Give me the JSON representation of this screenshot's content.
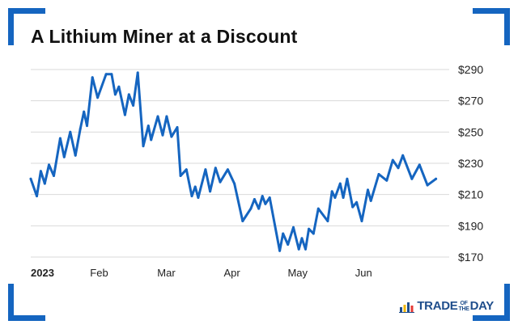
{
  "header": {
    "title": "A Lithium Miner at a Discount"
  },
  "brand": {
    "logo_part1": "TRADE",
    "logo_small1": "OF",
    "logo_small2": "THE",
    "logo_part2": "DAY",
    "logo_color": "#1f4e8c",
    "frame_color": "#1565c0"
  },
  "chart_data": {
    "type": "line",
    "title": "A Lithium Miner at a Discount",
    "xlabel": "",
    "ylabel": "",
    "ylim": [
      168,
      296
    ],
    "y_ticks": [
      170,
      190,
      210,
      230,
      250,
      270,
      290
    ],
    "y_tick_labels": [
      "$170",
      "$190",
      "$210",
      "$230",
      "$250",
      "$270",
      "$290"
    ],
    "x_tick_labels": [
      "2023",
      "Feb",
      "Mar",
      "Apr",
      "May",
      "Jun"
    ],
    "x_tick_positions": [
      0,
      22.5,
      44.6,
      66.2,
      87.8,
      109.5
    ],
    "x_range": [
      0,
      140
    ],
    "grid": true,
    "line_color": "#1565c0",
    "series": [
      {
        "values": [
          [
            0,
            220
          ],
          [
            2,
            209
          ],
          [
            3.3,
            225
          ],
          [
            4.6,
            217
          ],
          [
            6,
            229
          ],
          [
            7.6,
            222
          ],
          [
            9.7,
            246
          ],
          [
            11,
            234
          ],
          [
            13,
            250
          ],
          [
            14.7,
            235
          ],
          [
            16.3,
            252
          ],
          [
            17.5,
            263
          ],
          [
            18.5,
            254
          ],
          [
            20.3,
            285
          ],
          [
            22,
            272
          ],
          [
            24.8,
            287
          ],
          [
            26.6,
            287
          ],
          [
            27.8,
            274
          ],
          [
            29,
            279
          ],
          [
            31,
            261
          ],
          [
            32.3,
            274
          ],
          [
            33.7,
            267
          ],
          [
            35.2,
            288
          ],
          [
            37,
            241
          ],
          [
            38.7,
            254
          ],
          [
            39.6,
            245
          ],
          [
            41.8,
            260
          ],
          [
            43.4,
            248
          ],
          [
            44.7,
            260
          ],
          [
            46.3,
            247
          ],
          [
            48.2,
            253
          ],
          [
            49.3,
            222
          ],
          [
            51.2,
            226
          ],
          [
            53,
            209
          ],
          [
            54.1,
            215
          ],
          [
            55.1,
            208
          ],
          [
            57.5,
            226
          ],
          [
            59,
            212
          ],
          [
            60.8,
            227
          ],
          [
            62.3,
            218
          ],
          [
            64.8,
            226
          ],
          [
            67,
            217
          ],
          [
            69.7,
            193
          ],
          [
            72.4,
            201
          ],
          [
            73.6,
            207
          ],
          [
            75,
            201
          ],
          [
            76.2,
            209
          ],
          [
            77.2,
            204
          ],
          [
            78.6,
            208
          ],
          [
            81.9,
            174
          ],
          [
            83,
            185
          ],
          [
            84.6,
            178
          ],
          [
            86.4,
            189
          ],
          [
            88.2,
            175
          ],
          [
            89.2,
            182
          ],
          [
            90.4,
            175
          ],
          [
            91.5,
            188
          ],
          [
            93,
            185
          ],
          [
            94.6,
            201
          ],
          [
            97.7,
            193
          ],
          [
            99.1,
            212
          ],
          [
            100.1,
            208
          ],
          [
            101.8,
            217
          ],
          [
            102.8,
            208
          ],
          [
            104.1,
            220
          ],
          [
            105.9,
            202
          ],
          [
            107.2,
            205
          ],
          [
            108.9,
            193
          ],
          [
            110.9,
            213
          ],
          [
            111.9,
            206
          ],
          [
            114.5,
            223
          ],
          [
            117.1,
            219
          ],
          [
            119.1,
            232
          ],
          [
            120.9,
            227
          ],
          [
            122.4,
            235
          ],
          [
            125.4,
            220
          ],
          [
            127.9,
            229
          ],
          [
            130.5,
            216
          ],
          [
            133.3,
            220
          ]
        ]
      }
    ]
  }
}
